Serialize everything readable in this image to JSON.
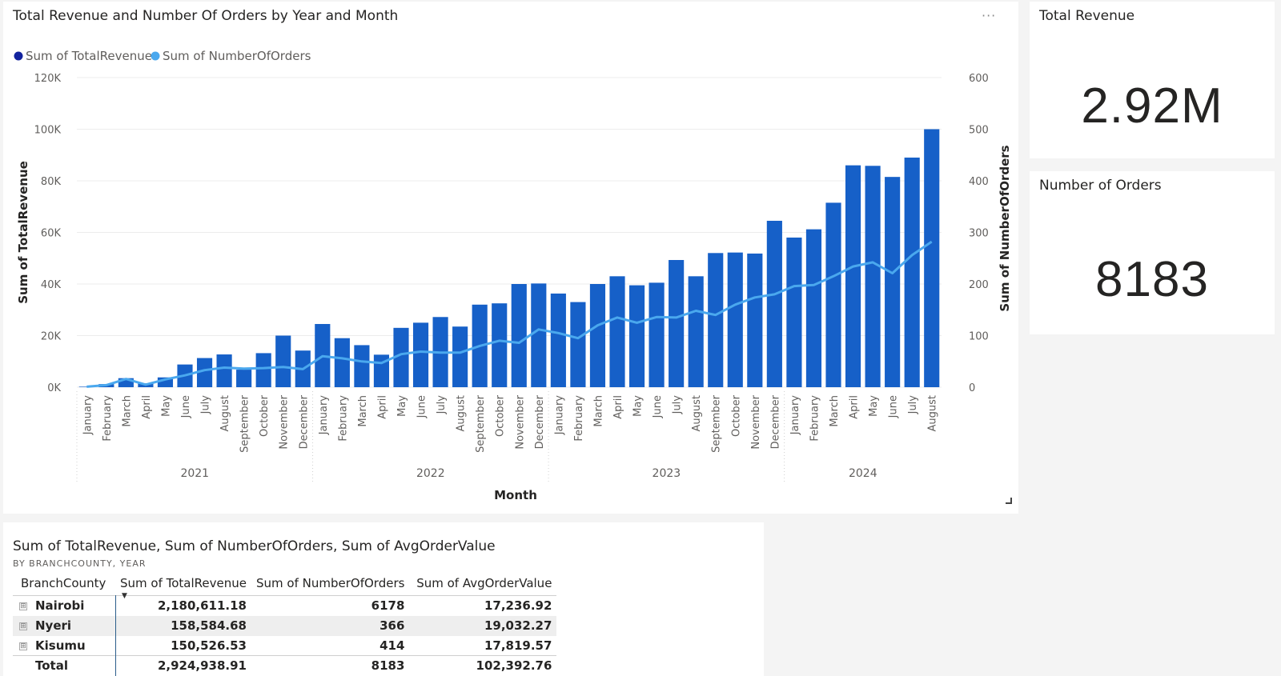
{
  "chart_card": {
    "title": "Total Revenue and Number Of Orders by Year and Month",
    "more_label": "···"
  },
  "kpi_revenue": {
    "title": "Total Revenue",
    "value": "2.92M"
  },
  "kpi_orders": {
    "title": "Number of Orders",
    "value": "8183"
  },
  "chart_data": {
    "type": "bar",
    "title": "Total Revenue and Number Of Orders by Year and Month",
    "xlabel": "Month",
    "ylabel": "Sum of TotalRevenue",
    "y2label": "Sum of NumberOfOrders",
    "ylim": [
      0,
      120000
    ],
    "y2lim": [
      0,
      600
    ],
    "yticks": [
      "0K",
      "20K",
      "40K",
      "60K",
      "80K",
      "100K",
      "120K"
    ],
    "y2ticks": [
      "0",
      "100",
      "200",
      "300",
      "400",
      "500",
      "600"
    ],
    "grid": true,
    "legend_position": "top-left",
    "categories": [
      "January",
      "February",
      "March",
      "April",
      "May",
      "June",
      "July",
      "August",
      "September",
      "October",
      "November",
      "December",
      "January",
      "February",
      "March",
      "April",
      "May",
      "June",
      "July",
      "August",
      "September",
      "October",
      "November",
      "December",
      "January",
      "February",
      "March",
      "April",
      "May",
      "June",
      "July",
      "August",
      "September",
      "October",
      "November",
      "December",
      "January",
      "February",
      "March",
      "April",
      "May",
      "June",
      "July",
      "August"
    ],
    "years": [
      {
        "label": "2021",
        "count": 12
      },
      {
        "label": "2022",
        "count": 12
      },
      {
        "label": "2023",
        "count": 12
      },
      {
        "label": "2024",
        "count": 8
      }
    ],
    "series": [
      {
        "name": "Sum of TotalRevenue",
        "type": "bar",
        "axis": "left",
        "color": "#1660c8",
        "values": [
          200,
          1200,
          3500,
          1500,
          3800,
          8800,
          11300,
          12700,
          6800,
          13200,
          20000,
          14200,
          24500,
          19000,
          16300,
          12600,
          23000,
          25000,
          27200,
          23500,
          32000,
          32500,
          40000,
          40200,
          36300,
          33000,
          40000,
          43000,
          39500,
          40500,
          49300,
          43000,
          52000,
          52200,
          51800,
          64500,
          58000,
          61200,
          71500,
          86000,
          85800,
          81500,
          89000,
          100000
        ]
      },
      {
        "name": "Sum of NumberOfOrders",
        "type": "line",
        "axis": "right",
        "color": "#4aa8ee",
        "values": [
          1,
          4,
          16,
          5,
          15,
          23,
          33,
          38,
          36,
          37,
          39,
          35,
          60,
          56,
          50,
          47,
          64,
          69,
          67,
          67,
          80,
          90,
          86,
          112,
          105,
          95,
          120,
          135,
          125,
          136,
          135,
          148,
          140,
          160,
          174,
          180,
          196,
          198,
          215,
          234,
          242,
          221,
          256,
          282
        ]
      }
    ]
  },
  "table_card": {
    "title": "Sum of TotalRevenue, Sum of NumberOfOrders, Sum of AvgOrderValue",
    "subtitle": "BY BRANCHCOUNTY, YEAR",
    "headers": [
      "BranchCounty",
      "Sum of TotalRevenue",
      "Sum of NumberOfOrders",
      "Sum of AvgOrderValue"
    ],
    "sort_indicator": "▼",
    "expand_symbol": "⊞",
    "rows": [
      {
        "county": "Nairobi",
        "revenue": "2,180,611.18",
        "orders": "6178",
        "avg": "17,236.92"
      },
      {
        "county": "Nyeri",
        "revenue": "158,584.68",
        "orders": "366",
        "avg": "19,032.27"
      },
      {
        "county": "Kisumu",
        "revenue": "150,526.53",
        "orders": "414",
        "avg": "17,819.57"
      }
    ],
    "total": {
      "label": "Total",
      "revenue": "2,924,938.91",
      "orders": "8183",
      "avg": "102,392.76"
    }
  }
}
